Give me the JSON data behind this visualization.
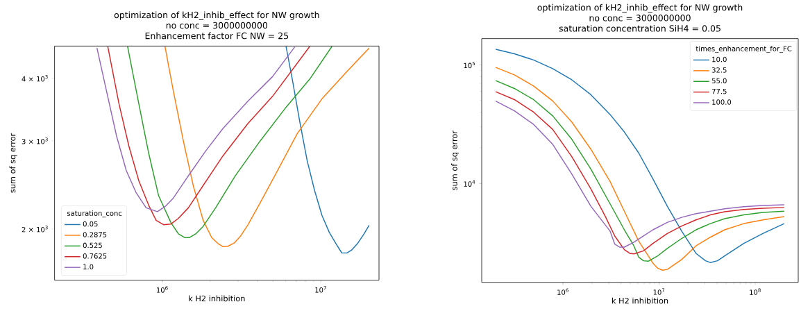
{
  "chart_data": [
    {
      "type": "line",
      "title": "optimization of kH2_inhib_effect for NW growth",
      "subtitle": "no conc = 3000000000",
      "annotations": [
        "Enhancement factor FC NW = 25"
      ],
      "xlabel": "k H2 inhibition",
      "ylabel": "sum of sq error",
      "log": "xy",
      "legend": "bottom left",
      "legend_title": "saturation_conc",
      "xlim": [
        209000,
        23300000
      ],
      "ylim": [
        1580,
        4640
      ],
      "xticks": [
        {
          "value": 1000000,
          "label": "10$^{6}$"
        },
        {
          "value": 10000000,
          "label": "10$^{7}$"
        }
      ],
      "yticks": [
        {
          "value": 2000,
          "label": "2 × 10$^{3}$"
        },
        {
          "value": 3000,
          "label": "3 × 10$^{3}$"
        },
        {
          "value": 4000,
          "label": "4 × 10$^{3}$"
        }
      ],
      "series": [
        {
          "name": "0.05",
          "color": "#1f77b4",
          "x": [
            6040000,
            6610000,
            7360000,
            8210000,
            9140000,
            10180000,
            11340000,
            12400000,
            13580000,
            14590000,
            15670000,
            17140000,
            18750000,
            20200000
          ],
          "values": [
            4630,
            3985,
            3283,
            2736,
            2386,
            2127,
            1966,
            1874,
            1790,
            1790,
            1815,
            1874,
            1955,
            2034
          ]
        },
        {
          "name": "0.2875",
          "color": "#ff7f0e",
          "x": [
            1040000,
            1175000,
            1358000,
            1567000,
            1810000,
            2050000,
            2250000,
            2410000,
            2590000,
            2840000,
            3110000,
            3460000,
            4140000,
            5330000,
            7110000,
            10180000,
            14590000,
            20200000
          ],
          "values": [
            4630,
            3766,
            2997,
            2442,
            2081,
            1922,
            1869,
            1844,
            1847,
            1874,
            1934,
            2035,
            2254,
            2614,
            3102,
            3640,
            4124,
            4596
          ]
        },
        {
          "name": "0.525",
          "color": "#2ca02c",
          "x": [
            604000,
            711000,
            821000,
            947000,
            1134000,
            1264000,
            1382000,
            1485000,
            1625000,
            1810000,
            2170000,
            2890000,
            4140000,
            5940000,
            8510000,
            11750000
          ],
          "values": [
            4630,
            3557,
            2831,
            2332,
            2058,
            1955,
            1922,
            1922,
            1955,
            2023,
            2204,
            2555,
            2997,
            3478,
            3985,
            4630
          ]
        },
        {
          "name": "0.7625",
          "color": "#d62728",
          "x": [
            453000,
            533000,
            615000,
            711000,
            821000,
            914000,
            1018000,
            1134000,
            1264000,
            1460000,
            1810000,
            2410000,
            3460000,
            4960000,
            8510000
          ],
          "values": [
            4630,
            3557,
            2930,
            2496,
            2229,
            2081,
            2039,
            2046,
            2100,
            2204,
            2442,
            2798,
            3246,
            3681,
            4630
          ]
        },
        {
          "name": "1.0",
          "color": "#9467bd",
          "x": [
            387000,
            445000,
            514000,
            593000,
            685000,
            791000,
            931000,
            1040000,
            1175000,
            1460000,
            1880000,
            2410000,
            3460000,
            4960000,
            6850000
          ],
          "values": [
            4600,
            3766,
            3069,
            2614,
            2360,
            2204,
            2166,
            2216,
            2306,
            2554,
            2864,
            3173,
            3597,
            4031,
            4622
          ]
        }
      ]
    },
    {
      "type": "line",
      "title": "optimization of kH2_inhib_effect for NW growth",
      "subtitle": "no conc = 3000000000",
      "annotations": [
        "saturation concentration SiH4 = 0.05"
      ],
      "xlabel": "k H2 inhibition",
      "ylabel": "sum of sq error",
      "log": "xy",
      "legend": "top right",
      "legend_title": "times_enhancement_for_FC",
      "xlim": [
        143000,
        280000000
      ],
      "ylim": [
        1462,
        166700
      ],
      "xticks": [
        {
          "value": 1000000,
          "label": "10$^{6}$"
        },
        {
          "value": 10000000,
          "label": "10$^{7}$"
        },
        {
          "value": 100000000,
          "label": "10$^{8}$"
        }
      ],
      "yticks": [
        {
          "value": 10000,
          "label": "10$^{4}$"
        },
        {
          "value": 100000,
          "label": "10$^{5}$"
        }
      ],
      "series": [
        {
          "name": "10.0",
          "color": "#1f77b4",
          "x": [
            200000,
            313000,
            495000,
            782000,
            1236000,
            1953000,
            3090000,
            4350000,
            6130000,
            8640000,
            12180000,
            17170000,
            24200000,
            30400000,
            34100000,
            40500000,
            48100000,
            76000000,
            120100000,
            200000000
          ],
          "values": [
            135500,
            124200,
            110100,
            93000,
            74900,
            56100,
            38200,
            27200,
            18100,
            10900,
            6420,
            3965,
            2570,
            2225,
            2150,
            2225,
            2449,
            3116,
            3779,
            4582
          ]
        },
        {
          "name": "32.5",
          "color": "#ff7f0e",
          "x": [
            200000,
            313000,
            495000,
            782000,
            1236000,
            1953000,
            3090000,
            4350000,
            6130000,
            8640000,
            9690000,
            10870000,
            12180000,
            17170000,
            24200000,
            34100000,
            48100000,
            76000000,
            120100000,
            200000000
          ],
          "values": [
            95300,
            82500,
            66400,
            49700,
            33000,
            19440,
            10390,
            5830,
            3270,
            2120,
            1925,
            1853,
            1880,
            2279,
            2970,
            3516,
            4063,
            4582,
            4926,
            5245
          ]
        },
        {
          "name": "55.0",
          "color": "#2ca02c",
          "x": [
            200000,
            313000,
            495000,
            782000,
            1236000,
            1953000,
            3090000,
            4350000,
            5470000,
            6130000,
            6880000,
            7710000,
            9690000,
            12180000,
            17170000,
            24200000,
            34100000,
            48100000,
            76000000,
            120100000,
            200000000
          ],
          "values": [
            73800,
            63300,
            51000,
            37200,
            23600,
            13220,
            6739,
            4063,
            2970,
            2391,
            2225,
            2204,
            2449,
            2830,
            3432,
            4063,
            4582,
            5046,
            5424,
            5690,
            5830
          ]
        },
        {
          "name": "77.5",
          "color": "#d62728",
          "x": [
            200000,
            313000,
            495000,
            782000,
            1236000,
            1953000,
            2750000,
            3460000,
            4350000,
            4950000,
            5470000,
            6880000,
            8640000,
            12180000,
            17170000,
            24200000,
            34100000,
            48100000,
            76000000,
            120100000,
            200000000
          ],
          "values": [
            59400,
            51000,
            40000,
            28600,
            16830,
            8995,
            5294,
            3601,
            2763,
            2570,
            2545,
            2698,
            3116,
            3779,
            4367,
            4926,
            5424,
            5774,
            6030,
            6178,
            6268
          ]
        },
        {
          "name": "100.0",
          "color": "#9467bd",
          "x": [
            200000,
            313000,
            495000,
            782000,
            1236000,
            1953000,
            3090000,
            3460000,
            3880000,
            4350000,
            5470000,
            6880000,
            8640000,
            12180000,
            17170000,
            24200000,
            34100000,
            48100000,
            76000000,
            120100000,
            200000000
          ],
          "values": [
            49500,
            41000,
            31500,
            21400,
            12010,
            6420,
            3965,
            3072,
            2900,
            2900,
            3192,
            3601,
            4063,
            4693,
            5169,
            5555,
            5830,
            6118,
            6358,
            6514,
            6609
          ]
        }
      ]
    }
  ]
}
